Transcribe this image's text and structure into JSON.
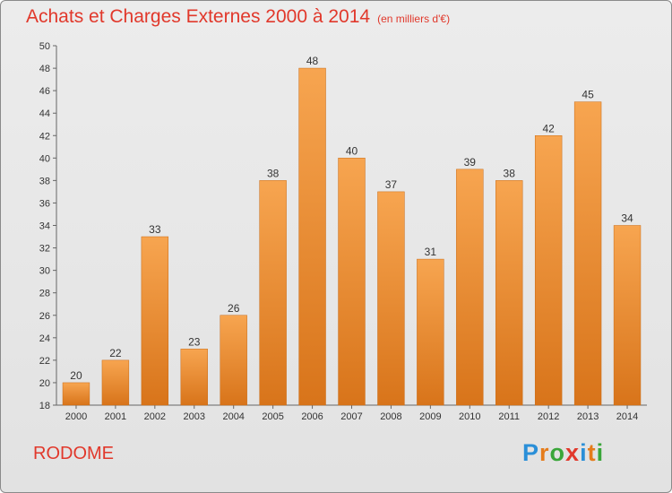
{
  "title": "Achats et Charges Externes 2000 à 2014",
  "unit": "(en milliers d'€)",
  "commune": "RODOME",
  "logo": {
    "letters": [
      "P",
      "r",
      "o",
      "x",
      "i",
      "t",
      "i"
    ],
    "colors": [
      "#2a8fd8",
      "#e57c1b",
      "#3aa63a",
      "#e1382b",
      "#2a8fd8",
      "#e57c1b",
      "#3aa63a"
    ]
  },
  "chart_data": {
    "type": "bar",
    "categories": [
      "2000",
      "2001",
      "2002",
      "2003",
      "2004",
      "2005",
      "2006",
      "2007",
      "2008",
      "2009",
      "2010",
      "2011",
      "2012",
      "2013",
      "2014"
    ],
    "values": [
      20,
      22,
      33,
      23,
      26,
      38,
      48,
      40,
      37,
      31,
      39,
      38,
      42,
      45,
      34
    ],
    "ylim": [
      18,
      50
    ],
    "yticks": [
      18,
      20,
      22,
      24,
      26,
      28,
      30,
      32,
      34,
      36,
      38,
      40,
      42,
      44,
      46,
      48,
      50
    ],
    "grid": false,
    "bar_color": "#f0922e"
  }
}
